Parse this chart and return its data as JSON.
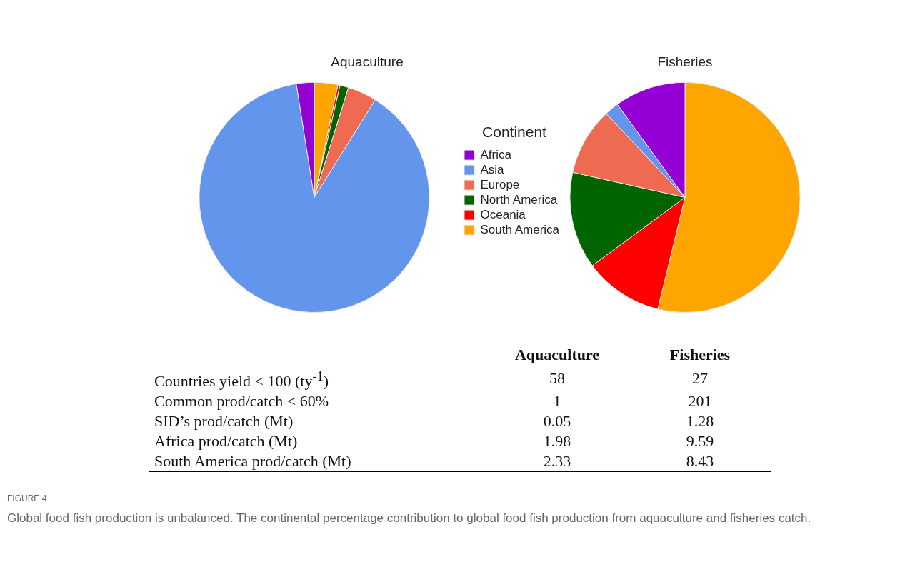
{
  "chart_data": [
    {
      "type": "pie",
      "title": "Aquaculture",
      "categories": [
        "South America",
        "Oceania",
        "North America",
        "Europe",
        "Asia",
        "Africa"
      ],
      "values": [
        3.3,
        0.3,
        1.2,
        4.1,
        88.6,
        2.5
      ],
      "colors": [
        "#ffa500",
        "#ff0000",
        "#006400",
        "#ee6a50",
        "#6495ed",
        "#9400d3"
      ],
      "legend": "right",
      "legend_title": "Continent"
    },
    {
      "type": "pie",
      "title": "Fisheries",
      "categories": [
        null,
        null,
        null,
        null,
        null,
        null
      ],
      "values": [
        53.8,
        11.1,
        13.6,
        9.5,
        2.0,
        10.0
      ],
      "colors": [
        "#ffa500",
        "#ff0000",
        "#006400",
        "#ee6a50",
        "#6495ed",
        "#9400d3"
      ],
      "legend": false
    },
    {
      "type": "other",
      "categories": [
        "Aquaculture",
        "Fisheries"
      ],
      "y_categories": [
        "Countries yield < 100 (ty$^{-1}$)",
        "Common prod/catch < 60%",
        "SID’s prod/catch (Mt)",
        "Africa prod/catch (Mt)",
        "South America prod/catch (Mt)"
      ],
      "cell_labels": [
        [
          "58",
          "27"
        ],
        [
          "1",
          "201"
        ],
        [
          "0.05",
          "1.28"
        ],
        [
          "1.98",
          "9.59"
        ],
        [
          "2.33",
          "8.43"
        ]
      ],
      "annotations": [
        "FIGURE 4",
        "Global food fish production is unbalanced. The continental percentage contribution to global food fish production from aquaculture and fisheries catch."
      ]
    }
  ]
}
